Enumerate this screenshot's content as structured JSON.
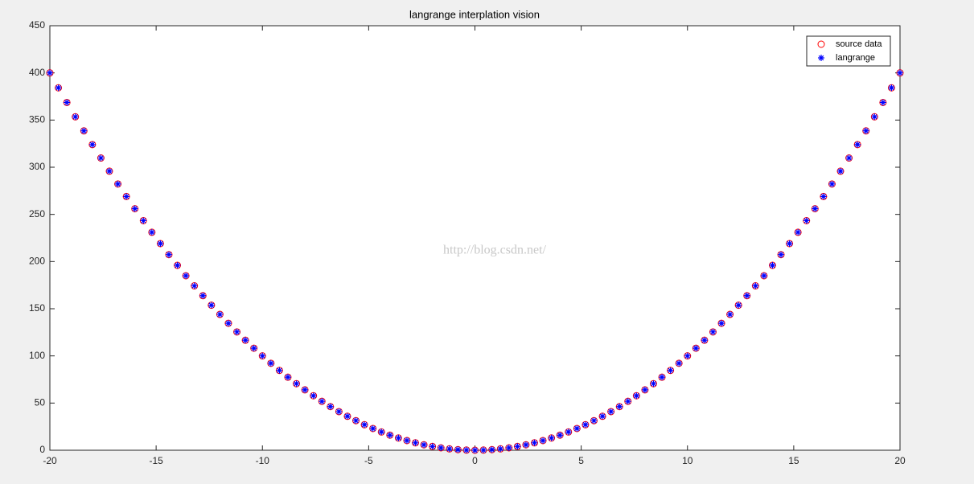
{
  "chart_data": {
    "type": "scatter",
    "title": "langrange interplation vision",
    "watermark": "http://blog.csdn.net/",
    "x": [
      -20,
      -19.6,
      -19.2,
      -18.8,
      -18.4,
      -18,
      -17.6,
      -17.2,
      -16.8,
      -16.4,
      -16,
      -15.6,
      -15.2,
      -14.8,
      -14.4,
      -14,
      -13.6,
      -13.2,
      -12.8,
      -12.4,
      -12,
      -11.6,
      -11.2,
      -10.8,
      -10.4,
      -10,
      -9.6,
      -9.2,
      -8.8,
      -8.4,
      -8,
      -7.6,
      -7.2,
      -6.8,
      -6.4,
      -6,
      -5.6,
      -5.2,
      -4.8,
      -4.4,
      -4,
      -3.6,
      -3.2,
      -2.8,
      -2.4,
      -2,
      -1.6,
      -1.2,
      -0.8,
      -0.4,
      0,
      0.4,
      0.8,
      1.2,
      1.6,
      2,
      2.4,
      2.8,
      3.2,
      3.6,
      4,
      4.4,
      4.8,
      5.2,
      5.6,
      6,
      6.4,
      6.8,
      7.2,
      7.6,
      8,
      8.4,
      8.8,
      9.2,
      9.6,
      10,
      10.4,
      10.8,
      11.2,
      11.6,
      12,
      12.4,
      12.8,
      13.2,
      13.6,
      14,
      14.4,
      14.8,
      15.2,
      15.6,
      16,
      16.4,
      16.8,
      17.2,
      17.6,
      18,
      18.4,
      18.8,
      19.2,
      19.6,
      20
    ],
    "series": [
      {
        "name": "source data",
        "color": "#ff0000",
        "marker": "circle",
        "values": [
          400,
          384.16,
          368.64,
          353.44,
          338.56,
          324,
          309.76,
          295.84,
          282.24,
          268.96,
          256,
          243.36,
          231.04,
          219.04,
          207.36,
          196,
          184.96,
          174.24,
          163.84,
          153.76,
          144,
          134.56,
          125.44,
          116.64,
          108.16,
          100,
          92.16,
          84.64,
          77.44,
          70.56,
          64,
          57.76,
          51.84,
          46.24,
          40.96,
          36,
          31.36,
          27.04,
          23.04,
          19.36,
          16,
          12.96,
          10.24,
          7.84,
          5.76,
          4,
          2.56,
          1.44,
          0.64,
          0.16,
          0,
          0.16,
          0.64,
          1.44,
          2.56,
          4,
          5.76,
          7.84,
          10.24,
          12.96,
          16,
          19.36,
          23.04,
          27.04,
          31.36,
          36,
          40.96,
          46.24,
          51.84,
          57.76,
          64,
          70.56,
          77.44,
          84.64,
          92.16,
          100,
          108.16,
          116.64,
          125.44,
          134.56,
          144,
          153.76,
          163.84,
          174.24,
          184.96,
          196,
          207.36,
          219.04,
          231.04,
          243.36,
          256,
          268.96,
          282.24,
          295.84,
          309.76,
          324,
          338.56,
          353.44,
          368.64,
          384.16,
          400
        ]
      },
      {
        "name": "langrange",
        "color": "#0000ff",
        "marker": "asterisk",
        "values": [
          400,
          384.16,
          368.64,
          353.44,
          338.56,
          324,
          309.76,
          295.84,
          282.24,
          268.96,
          256,
          243.36,
          231.04,
          219.04,
          207.36,
          196,
          184.96,
          174.24,
          163.84,
          153.76,
          144,
          134.56,
          125.44,
          116.64,
          108.16,
          100,
          92.16,
          84.64,
          77.44,
          70.56,
          64,
          57.76,
          51.84,
          46.24,
          40.96,
          36,
          31.36,
          27.04,
          23.04,
          19.36,
          16,
          12.96,
          10.24,
          7.84,
          5.76,
          4,
          2.56,
          1.44,
          0.64,
          0.16,
          0,
          0.16,
          0.64,
          1.44,
          2.56,
          4,
          5.76,
          7.84,
          10.24,
          12.96,
          16,
          19.36,
          23.04,
          27.04,
          31.36,
          36,
          40.96,
          46.24,
          51.84,
          57.76,
          64,
          70.56,
          77.44,
          84.64,
          92.16,
          100,
          108.16,
          116.64,
          125.44,
          134.56,
          144,
          153.76,
          163.84,
          174.24,
          184.96,
          196,
          207.36,
          219.04,
          231.04,
          243.36,
          256,
          268.96,
          282.24,
          295.84,
          309.76,
          324,
          338.56,
          353.44,
          368.64,
          384.16,
          400
        ]
      }
    ],
    "xlim": [
      -20,
      20
    ],
    "xticks": [
      -20,
      -15,
      -10,
      -5,
      0,
      5,
      10,
      15,
      20
    ],
    "ylim": [
      0,
      450
    ],
    "yticks": [
      0,
      50,
      100,
      150,
      200,
      250,
      300,
      350,
      400,
      450
    ],
    "legend": "top-right"
  }
}
